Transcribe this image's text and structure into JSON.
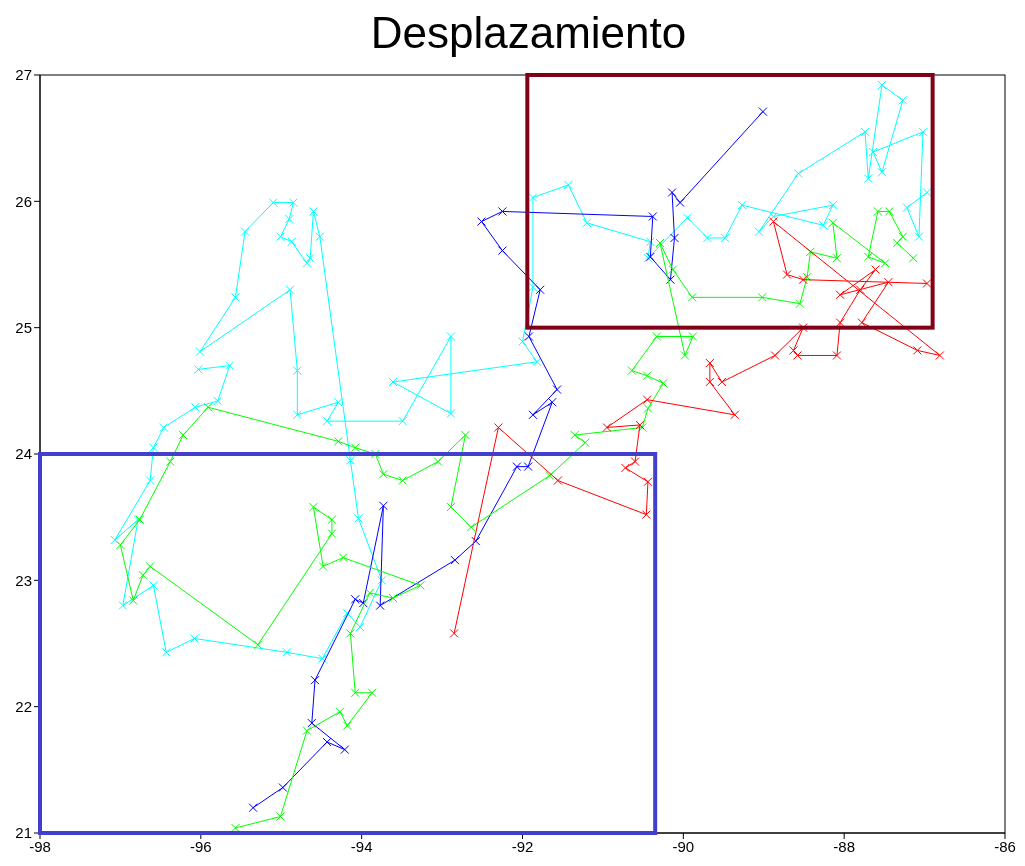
{
  "chart_data": {
    "type": "line",
    "title": "Desplazamiento",
    "marker": "cross",
    "xlim": [
      -98,
      -86
    ],
    "xticks": [
      -98,
      -96,
      -94,
      -92,
      -90,
      -88,
      -86
    ],
    "ylim": [
      21,
      27
    ],
    "yticks": [
      21,
      22,
      23,
      24,
      25,
      26,
      27
    ],
    "grid": false,
    "series": [
      {
        "color": "#00ffff",
        "x": [
          -86.97,
          -87.22,
          -87.07,
          -87.02,
          -87.64,
          -87.53,
          -87.27,
          -87.53,
          -87.7,
          -87.74,
          -88.57,
          -89.06,
          -88.88,
          -88.14,
          -88.26,
          -89.27,
          -89.48,
          -89.7,
          -89.95,
          -90.44,
          -90.41,
          -91.2,
          -91.43,
          -91.87,
          -91.87,
          -92.0,
          -91.82,
          -93.61,
          -92.89,
          -92.89,
          -93.49,
          -94.43,
          -94.29,
          -94.8,
          -94.8,
          -94.89,
          -96.01,
          -95.57,
          -95.45,
          -95.1,
          -94.85,
          -94.9,
          -95.01,
          -94.87,
          -94.68,
          -94.64,
          -94.6,
          -94.52,
          -94.14,
          -94.04,
          -93.75,
          -94.02,
          -94.18,
          -94.49,
          -94.93,
          -96.08,
          -96.43,
          -96.59,
          -96.97,
          -96.78,
          -97.07,
          -96.63,
          -96.59,
          -96.46,
          -96.07,
          -95.79,
          -95.64,
          -96.03
        ],
        "values": [
          26.07,
          25.95,
          25.72,
          26.55,
          26.39,
          26.23,
          26.8,
          26.92,
          26.18,
          26.55,
          26.22,
          25.76,
          25.88,
          25.97,
          25.81,
          25.97,
          25.71,
          25.71,
          25.87,
          25.55,
          25.68,
          25.83,
          26.13,
          26.03,
          25.32,
          24.89,
          24.73,
          24.57,
          24.32,
          24.93,
          24.26,
          24.26,
          24.41,
          24.31,
          24.66,
          25.3,
          24.81,
          25.24,
          25.76,
          25.99,
          25.99,
          25.86,
          25.72,
          25.68,
          25.51,
          25.55,
          25.92,
          25.72,
          23.95,
          23.49,
          23.0,
          22.63,
          22.74,
          22.38,
          22.43,
          22.54,
          22.43,
          22.96,
          22.8,
          23.48,
          23.32,
          23.79,
          24.05,
          24.21,
          24.37,
          24.42,
          24.7,
          24.67
        ]
      },
      {
        "color": "#0000ff",
        "x": [
          -95.35,
          -94.98,
          -94.43,
          -94.21,
          -94.62,
          -94.58,
          -94.08,
          -93.98,
          -93.73,
          -93.77,
          -92.84,
          -92.58,
          -92.07,
          -91.93,
          -91.63,
          -91.87,
          -91.57,
          -91.92,
          -91.78,
          -92.25,
          -92.51,
          -92.25,
          -90.38,
          -90.41,
          -90.16,
          -90.11,
          -90.14,
          -90.04,
          -89.01
        ],
        "values": [
          21.2,
          21.36,
          21.72,
          21.66,
          21.87,
          22.21,
          22.85,
          22.82,
          23.59,
          22.8,
          23.16,
          23.31,
          23.9,
          23.9,
          24.41,
          24.31,
          24.51,
          24.93,
          25.3,
          25.61,
          25.84,
          25.92,
          25.88,
          25.56,
          25.38,
          25.71,
          26.07,
          25.99,
          26.71
        ]
      },
      {
        "color": "#00ff00",
        "x": [
          -95.57,
          -95.01,
          -94.68,
          -94.27,
          -94.18,
          -93.87,
          -94.08,
          -94.14,
          -93.9,
          -93.61,
          -93.27,
          -94.23,
          -94.48,
          -94.6,
          -94.37,
          -94.37,
          -95.29,
          -96.63,
          -96.72,
          -96.84,
          -97.0,
          -96.76,
          -96.38,
          -96.22,
          -95.91,
          -94.29,
          -94.08,
          -93.83,
          -93.73,
          -93.49,
          -93.05,
          -92.71,
          -92.89,
          -92.64,
          -91.66,
          -91.22,
          -91.35,
          -90.51,
          -90.44,
          -90.25,
          -90.45,
          -90.64,
          -90.33,
          -89.88,
          -89.98,
          -90.29,
          -90.13,
          -89.89,
          -89.02,
          -88.55,
          -88.46,
          -88.42,
          -88.09,
          -88.14,
          -87.49,
          -87.7,
          -87.58,
          -87.44,
          -87.27,
          -87.34,
          -87.14
        ],
        "values": [
          21.04,
          21.13,
          21.81,
          21.96,
          21.85,
          22.11,
          22.11,
          22.58,
          22.9,
          22.86,
          22.96,
          23.18,
          23.11,
          23.58,
          23.48,
          23.37,
          22.49,
          23.11,
          23.04,
          22.84,
          23.28,
          23.48,
          23.94,
          24.15,
          24.37,
          24.1,
          24.05,
          24.0,
          23.84,
          23.79,
          23.94,
          24.15,
          23.58,
          23.42,
          23.83,
          24.09,
          24.15,
          24.21,
          24.36,
          24.56,
          24.62,
          24.66,
          24.93,
          24.93,
          24.78,
          25.67,
          25.46,
          25.24,
          25.24,
          25.19,
          25.4,
          25.6,
          25.55,
          25.83,
          25.51,
          25.56,
          25.92,
          25.92,
          25.72,
          25.67,
          25.55
        ]
      },
      {
        "color": "#ff0000",
        "x": [
          -92.85,
          -92.3,
          -91.56,
          -90.46,
          -90.44,
          -90.72,
          -90.6,
          -90.54,
          -90.95,
          -90.45,
          -89.36,
          -89.67,
          -89.67,
          -89.52,
          -88.86,
          -88.51,
          -88.63,
          -88.58,
          -88.09,
          -88.05,
          -87.8,
          -87.61,
          -88.05,
          -87.45,
          -87.78,
          -87.09,
          -86.81,
          -88.88,
          -88.71,
          -88.51,
          -86.97
        ],
        "values": [
          22.58,
          24.21,
          23.79,
          23.52,
          23.78,
          23.89,
          23.94,
          24.23,
          24.21,
          24.43,
          24.31,
          24.57,
          24.72,
          24.57,
          24.78,
          25.0,
          24.82,
          24.78,
          24.78,
          25.04,
          25.3,
          25.46,
          25.26,
          25.36,
          25.04,
          24.82,
          24.78,
          25.84,
          25.42,
          25.38,
          25.35
        ]
      }
    ]
  }
}
